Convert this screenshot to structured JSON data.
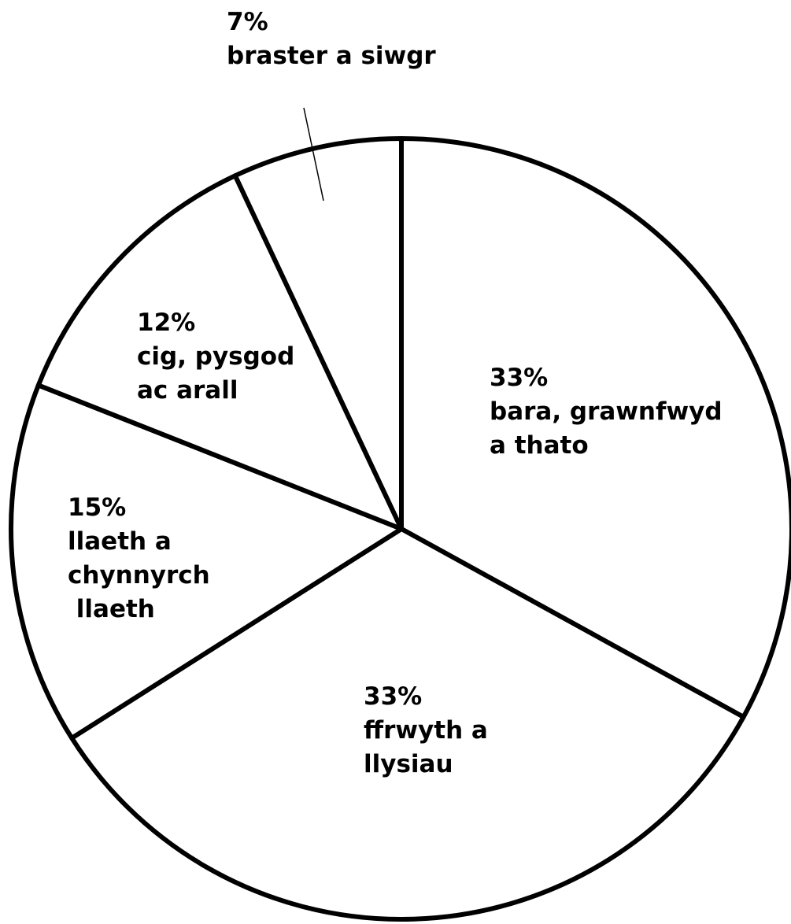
{
  "chart_data": {
    "type": "pie",
    "title": "",
    "start_angle_deg": -90,
    "direction": "clockwise",
    "colors": {
      "fill": "#ffffff",
      "stroke": "#000000"
    },
    "slices": [
      {
        "value": 33,
        "percent_label": "33%",
        "label_lines": [
          "bara, grawnfwyd",
          "a thato"
        ]
      },
      {
        "value": 33,
        "percent_label": "33%",
        "label_lines": [
          "ffrwyth a",
          "llysiau"
        ]
      },
      {
        "value": 15,
        "percent_label": "15%",
        "label_lines": [
          "llaeth a",
          "chynnyrch",
          " llaeth"
        ]
      },
      {
        "value": 12,
        "percent_label": "12%",
        "label_lines": [
          "cig, pysgod",
          "ac arall"
        ]
      },
      {
        "value": 7,
        "percent_label": "7%",
        "label_lines": [
          "braster a siwgr"
        ]
      }
    ]
  }
}
